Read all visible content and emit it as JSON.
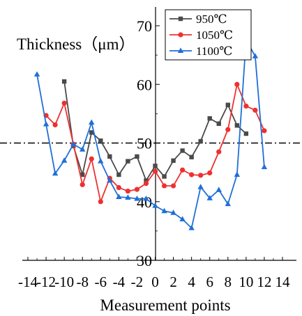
{
  "chart_data": {
    "type": "line",
    "title": "",
    "ylabel": "Thickness（μm）",
    "xlabel": "Measurement points",
    "xlim": [
      -14,
      14
    ],
    "ylim": [
      30,
      70
    ],
    "x_ticks": [
      -14,
      -12,
      -10,
      -8,
      -6,
      -4,
      -2,
      0,
      2,
      4,
      6,
      8,
      10,
      12,
      14
    ],
    "y_ticks": [
      30,
      40,
      50,
      60,
      70
    ],
    "reference_line": {
      "y": 50,
      "style": "dash-dot"
    },
    "legend_position": "top-right",
    "grid": false,
    "series": [
      {
        "name": "950℃",
        "color": "#4a4a4a",
        "marker": "square",
        "x": [
          -10,
          -9,
          -8,
          -7,
          -6,
          -5,
          -4,
          -3,
          -2,
          -1,
          0,
          1,
          2,
          3,
          4,
          5,
          6,
          7,
          8,
          9,
          10
        ],
        "y": [
          60.5,
          49.5,
          44.6,
          51.8,
          50.4,
          47.7,
          44.6,
          46.9,
          47.7,
          43.6,
          46.1,
          44.3,
          47.0,
          48.7,
          47.6,
          50.3,
          54.2,
          53.3,
          56.5,
          53.0,
          51.6
        ]
      },
      {
        "name": "1050℃",
        "color": "#ee3030",
        "marker": "circle",
        "x": [
          -12,
          -11,
          -10,
          -9,
          -8,
          -7,
          -6,
          -5,
          -4,
          -3,
          -2,
          -1,
          0,
          1,
          2,
          3,
          4,
          5,
          6,
          7,
          8,
          9,
          10,
          11,
          12
        ],
        "y": [
          54.7,
          53.1,
          56.8,
          49.8,
          42.9,
          47.3,
          40.0,
          44.0,
          42.4,
          41.8,
          42.1,
          43.1,
          45.2,
          42.7,
          42.7,
          45.4,
          44.6,
          44.5,
          44.9,
          48.5,
          52.3,
          60.0,
          56.3,
          55.6,
          52.1
        ]
      },
      {
        "name": "1100℃",
        "color": "#1f6fd8",
        "marker": "triangle",
        "x": [
          -13,
          -12,
          -11,
          -10,
          -9,
          -8,
          -7,
          -6,
          -5,
          -4,
          -3,
          -2,
          -1,
          0,
          1,
          2,
          3,
          4,
          5,
          6,
          7,
          8,
          9,
          10,
          11,
          12
        ],
        "y": [
          61.7,
          53.2,
          44.8,
          47.0,
          49.8,
          48.9,
          53.5,
          46.9,
          43.6,
          40.8,
          40.7,
          40.5,
          40.5,
          39.3,
          38.4,
          38.1,
          37.0,
          35.5,
          42.5,
          40.6,
          42.0,
          39.6,
          44.6,
          67.6,
          64.8,
          45.9
        ]
      }
    ]
  }
}
